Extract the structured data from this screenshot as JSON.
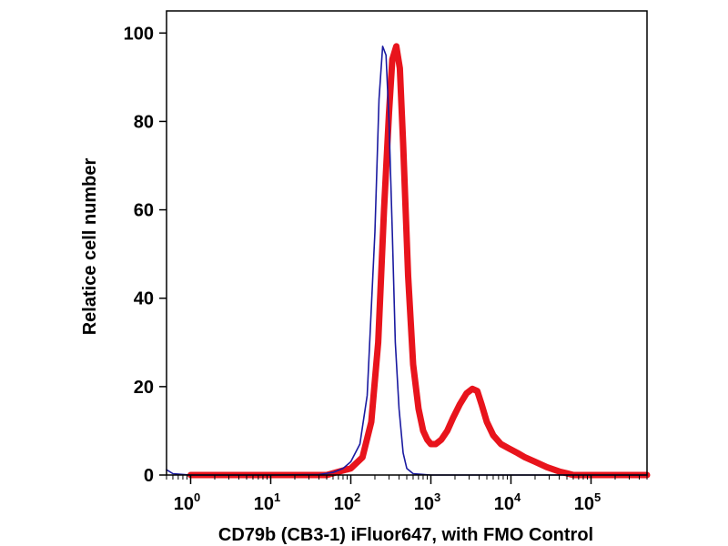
{
  "chart_data": {
    "type": "line",
    "title": "",
    "xlabel": "CD79b (CB3-1) iFluor647, with FMO Control",
    "ylabel": "Relatice cell number",
    "x_scale": "log",
    "xlim": [
      0.5,
      500000
    ],
    "ylim": [
      0,
      105
    ],
    "grid": false,
    "x_ticks": [
      {
        "base": "10",
        "exp": "0",
        "value": 1
      },
      {
        "base": "10",
        "exp": "1",
        "value": 10
      },
      {
        "base": "10",
        "exp": "2",
        "value": 100
      },
      {
        "base": "10",
        "exp": "3",
        "value": 1000
      },
      {
        "base": "10",
        "exp": "4",
        "value": 10000
      },
      {
        "base": "10",
        "exp": "5",
        "value": 100000
      }
    ],
    "y_ticks": [
      0,
      20,
      40,
      60,
      80,
      100
    ],
    "series": [
      {
        "color": "#1a1aa0",
        "x": [
          0.5,
          0.6,
          1,
          10,
          40,
          60,
          80,
          100,
          130,
          160,
          200,
          225,
          250,
          275,
          300,
          330,
          360,
          400,
          450,
          500,
          600,
          1000,
          10000,
          100000,
          500000
        ],
        "y": [
          1.2,
          0.3,
          0,
          0,
          0.1,
          0.6,
          1.5,
          3,
          7,
          18,
          55,
          85,
          97,
          95,
          80,
          55,
          30,
          15,
          5,
          1.5,
          0.3,
          0,
          0,
          0,
          0
        ]
      },
      {
        "color": "#e8141c",
        "x": [
          1,
          50,
          100,
          140,
          180,
          220,
          260,
          300,
          330,
          370,
          410,
          450,
          520,
          600,
          700,
          800,
          900,
          1000,
          1150,
          1350,
          1600,
          1900,
          2300,
          2800,
          3300,
          3800,
          4300,
          5000,
          6000,
          7500,
          9500,
          12000,
          15000,
          20000,
          28000,
          40000,
          50000,
          60000,
          100000,
          500000
        ],
        "y": [
          0,
          0,
          1.5,
          4,
          12,
          30,
          60,
          82,
          94,
          97,
          92,
          75,
          45,
          25,
          15,
          10,
          8,
          7,
          7,
          8,
          10,
          13,
          16,
          18.5,
          19.5,
          19,
          16,
          12,
          9,
          7,
          6,
          5,
          4,
          3,
          1.8,
          0.8,
          0.4,
          0,
          0,
          0
        ]
      }
    ]
  }
}
